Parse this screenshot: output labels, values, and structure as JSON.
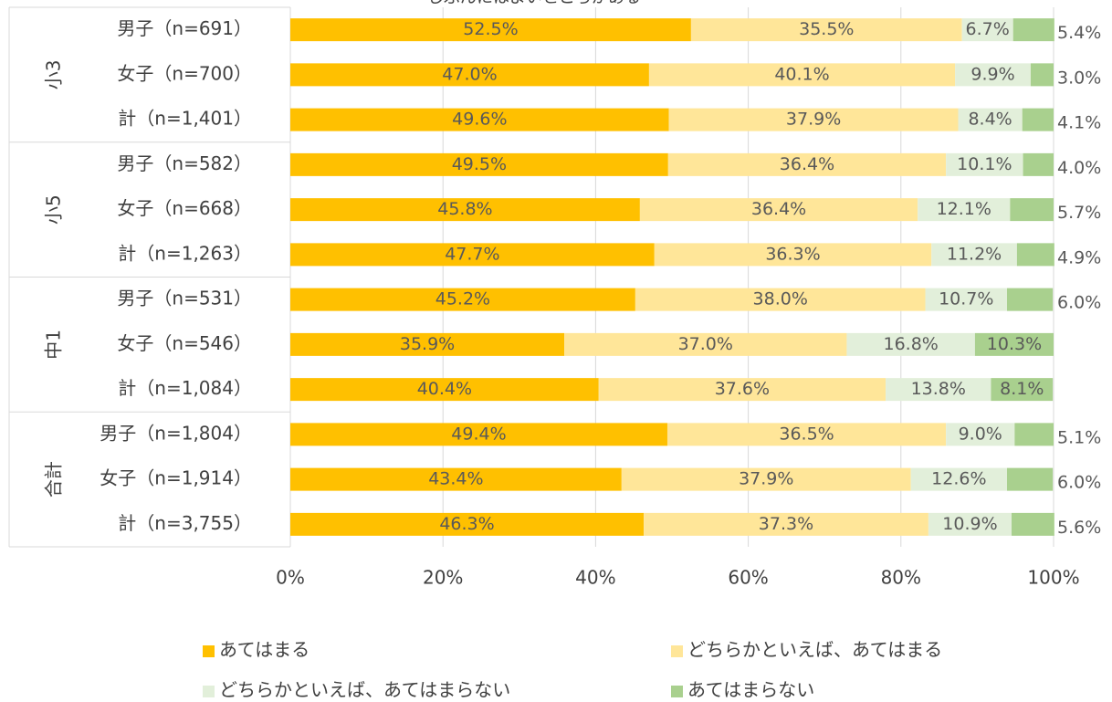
{
  "chart_data": {
    "type": "stacked-bar-horizontal",
    "title": "じぶんにはよいところがある",
    "groups": [
      "小3",
      "小5",
      "中1",
      "合計"
    ],
    "categories": [
      "男子（n=691）",
      "女子（n=700）",
      "計（n=1,401）",
      "男子（n=582）",
      "女子（n=668）",
      "計（n=1,263）",
      "男子（n=531）",
      "女子（n=546）",
      "計（n=1,084）",
      "男子（n=1,804）",
      "女子（n=1,914）",
      "計（n=3,755）"
    ],
    "series": [
      {
        "name": "あてはまる",
        "color": "#ffc000",
        "values": [
          52.5,
          47.0,
          49.6,
          49.5,
          45.8,
          47.7,
          45.2,
          35.9,
          40.4,
          49.4,
          43.4,
          46.3
        ],
        "value_labels": [
          "52.5%",
          "47.0%",
          "49.6%",
          "49.5%",
          "45.8%",
          "47.7%",
          "45.2%",
          "35.9%",
          "40.4%",
          "49.4%",
          "43.4%",
          "46.3%"
        ]
      },
      {
        "name": "どちらかといえば、あてはまる",
        "color": "#ffe699",
        "values": [
          35.5,
          40.1,
          37.9,
          36.4,
          36.4,
          36.3,
          38.0,
          37.0,
          37.6,
          36.5,
          37.9,
          37.3
        ],
        "value_labels": [
          "35.5%",
          "40.1%",
          "37.9%",
          "36.4%",
          "36.4%",
          "36.3%",
          "38.0%",
          "37.0%",
          "37.6%",
          "36.5%",
          "37.9%",
          "37.3%"
        ]
      },
      {
        "name": "どちらかといえば、あてはまらない",
        "color": "#e2efda",
        "values": [
          6.7,
          9.9,
          8.4,
          10.1,
          12.1,
          11.2,
          10.7,
          16.8,
          13.8,
          9.0,
          12.6,
          10.9
        ],
        "value_labels": [
          "6.7%",
          "9.9%",
          "8.4%",
          "10.1%",
          "12.1%",
          "11.2%",
          "10.7%",
          "16.8%",
          "13.8%",
          "9.0%",
          "12.6%",
          "10.9%"
        ]
      },
      {
        "name": "あてはまらない",
        "color": "#a9d08e",
        "values": [
          5.4,
          3.0,
          4.1,
          4.0,
          5.7,
          4.9,
          6.0,
          10.3,
          8.1,
          5.1,
          6.0,
          5.6
        ],
        "value_labels": [
          "5.4%",
          "3.0%",
          "4.1%",
          "4.0%",
          "5.7%",
          "4.9%",
          "6.0%",
          "10.3%",
          "8.1%",
          "5.1%",
          "6.0%",
          "5.6%"
        ]
      }
    ],
    "xlim": [
      0,
      100
    ],
    "xticks": [
      {
        "value": 0,
        "label": "0%"
      },
      {
        "value": 20,
        "label": "20%"
      },
      {
        "value": 40,
        "label": "40%"
      },
      {
        "value": 60,
        "label": "60%"
      },
      {
        "value": 80,
        "label": "80%"
      },
      {
        "value": 100,
        "label": "100%"
      }
    ],
    "grid": true,
    "legend": "bottom"
  }
}
